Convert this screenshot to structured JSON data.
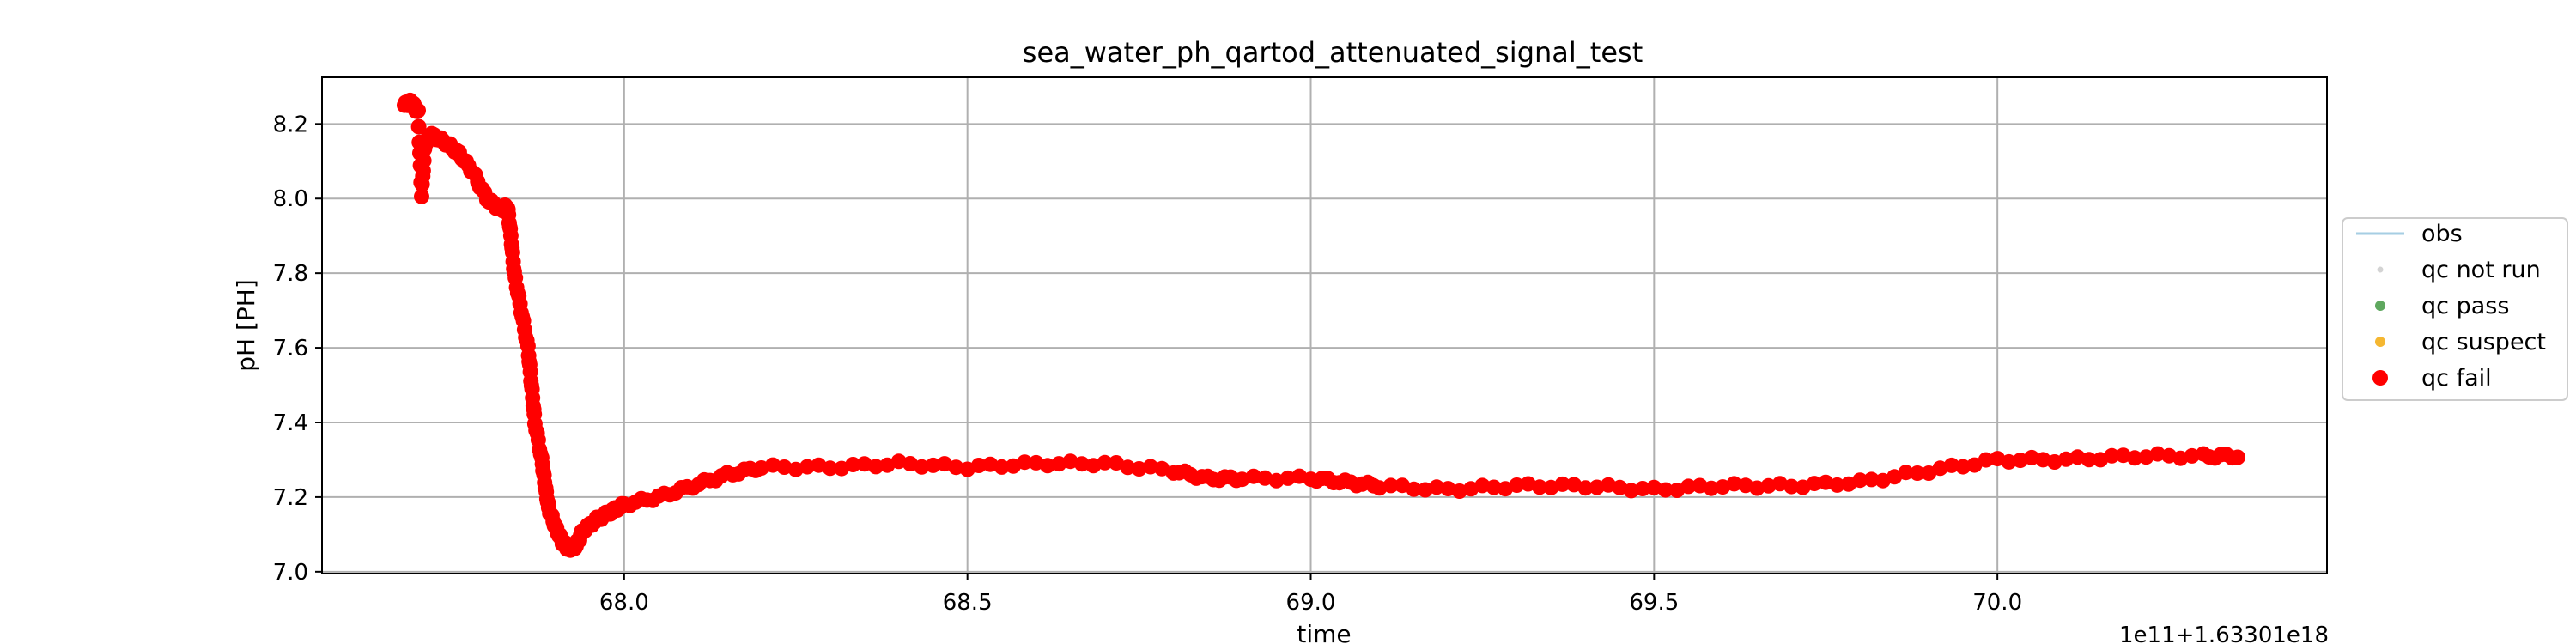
{
  "chart_data": {
    "type": "scatter",
    "title": "sea_water_ph_qartod_attenuated_signal_test",
    "xlabel": "time",
    "ylabel": "pH [PH]",
    "x_offset_label": "1e11+1.63301e18",
    "xlim": [
      67.56,
      70.48
    ],
    "ylim": [
      6.995,
      8.325
    ],
    "x_ticks": [
      68.0,
      68.5,
      69.0,
      69.5,
      70.0
    ],
    "x_tick_labels": [
      "68.0",
      "68.5",
      "69.0",
      "69.5",
      "70.0"
    ],
    "y_ticks": [
      7.0,
      7.2,
      7.4,
      7.6,
      7.8,
      8.0,
      8.2
    ],
    "y_tick_labels": [
      "7.0",
      "7.2",
      "7.4",
      "7.6",
      "7.8",
      "8.0",
      "8.2"
    ],
    "grid": true,
    "legend_position": "center-right",
    "legend": [
      {
        "label": "obs",
        "kind": "line",
        "color": "#a6cee3"
      },
      {
        "label": "qc not run",
        "kind": "point",
        "color": "#d3d3d3"
      },
      {
        "label": "qc pass",
        "kind": "point",
        "color": "#5fa85f"
      },
      {
        "label": "qc suspect",
        "kind": "point",
        "color": "#f5b731"
      },
      {
        "label": "qc fail",
        "kind": "point",
        "color": "#ff0000"
      }
    ],
    "series": [
      {
        "name": "obs",
        "color": "#a6cee3",
        "points": [
          [
            67.68,
            8.25
          ],
          [
            67.69,
            8.26
          ],
          [
            67.7,
            8.23
          ],
          [
            67.705,
            8.01
          ],
          [
            67.71,
            8.15
          ],
          [
            67.72,
            8.17
          ],
          [
            67.74,
            8.15
          ],
          [
            67.76,
            8.12
          ],
          [
            67.78,
            8.07
          ],
          [
            67.8,
            8.0
          ],
          [
            67.82,
            7.97
          ],
          [
            67.83,
            7.98
          ],
          [
            67.835,
            7.9
          ],
          [
            67.84,
            7.8
          ],
          [
            67.85,
            7.7
          ],
          [
            67.86,
            7.6
          ],
          [
            67.865,
            7.5
          ],
          [
            67.87,
            7.4
          ],
          [
            67.88,
            7.3
          ],
          [
            67.885,
            7.23
          ],
          [
            67.89,
            7.17
          ],
          [
            67.9,
            7.12
          ],
          [
            67.91,
            7.08
          ],
          [
            67.92,
            7.06
          ],
          [
            67.93,
            7.07
          ],
          [
            67.94,
            7.11
          ],
          [
            67.96,
            7.14
          ],
          [
            67.98,
            7.16
          ],
          [
            68.0,
            7.18
          ],
          [
            68.05,
            7.2
          ],
          [
            68.1,
            7.23
          ],
          [
            68.15,
            7.26
          ],
          [
            68.2,
            7.28
          ],
          [
            68.3,
            7.28
          ],
          [
            68.4,
            7.29
          ],
          [
            68.5,
            7.28
          ],
          [
            68.6,
            7.29
          ],
          [
            68.7,
            7.29
          ],
          [
            68.8,
            7.27
          ],
          [
            68.85,
            7.25
          ],
          [
            68.9,
            7.25
          ],
          [
            69.0,
            7.25
          ],
          [
            69.05,
            7.24
          ],
          [
            69.1,
            7.23
          ],
          [
            69.2,
            7.22
          ],
          [
            69.3,
            7.23
          ],
          [
            69.4,
            7.23
          ],
          [
            69.5,
            7.22
          ],
          [
            69.6,
            7.23
          ],
          [
            69.7,
            7.23
          ],
          [
            69.8,
            7.24
          ],
          [
            69.9,
            7.27
          ],
          [
            70.0,
            7.3
          ],
          [
            70.1,
            7.3
          ],
          [
            70.2,
            7.31
          ],
          [
            70.3,
            7.31
          ],
          [
            70.35,
            7.31
          ]
        ]
      },
      {
        "name": "qc fail",
        "color": "#ff0000",
        "points": [
          [
            67.68,
            8.25
          ],
          [
            67.69,
            8.26
          ],
          [
            67.7,
            8.23
          ],
          [
            67.705,
            8.01
          ],
          [
            67.71,
            8.15
          ],
          [
            67.72,
            8.17
          ],
          [
            67.74,
            8.15
          ],
          [
            67.76,
            8.12
          ],
          [
            67.78,
            8.07
          ],
          [
            67.8,
            8.0
          ],
          [
            67.82,
            7.97
          ],
          [
            67.83,
            7.98
          ],
          [
            67.835,
            7.9
          ],
          [
            67.84,
            7.8
          ],
          [
            67.85,
            7.7
          ],
          [
            67.86,
            7.6
          ],
          [
            67.865,
            7.5
          ],
          [
            67.87,
            7.4
          ],
          [
            67.88,
            7.3
          ],
          [
            67.885,
            7.23
          ],
          [
            67.89,
            7.17
          ],
          [
            67.9,
            7.12
          ],
          [
            67.91,
            7.08
          ],
          [
            67.92,
            7.06
          ],
          [
            67.93,
            7.07
          ],
          [
            67.94,
            7.11
          ],
          [
            67.96,
            7.14
          ],
          [
            67.98,
            7.16
          ],
          [
            68.0,
            7.18
          ],
          [
            68.05,
            7.2
          ],
          [
            68.1,
            7.23
          ],
          [
            68.15,
            7.26
          ],
          [
            68.2,
            7.28
          ],
          [
            68.3,
            7.28
          ],
          [
            68.4,
            7.29
          ],
          [
            68.5,
            7.28
          ],
          [
            68.6,
            7.29
          ],
          [
            68.7,
            7.29
          ],
          [
            68.8,
            7.27
          ],
          [
            68.85,
            7.25
          ],
          [
            68.9,
            7.25
          ],
          [
            69.0,
            7.25
          ],
          [
            69.05,
            7.24
          ],
          [
            69.1,
            7.23
          ],
          [
            69.2,
            7.22
          ],
          [
            69.3,
            7.23
          ],
          [
            69.4,
            7.23
          ],
          [
            69.5,
            7.22
          ],
          [
            69.6,
            7.23
          ],
          [
            69.7,
            7.23
          ],
          [
            69.8,
            7.24
          ],
          [
            69.9,
            7.27
          ],
          [
            70.0,
            7.3
          ],
          [
            70.1,
            7.3
          ],
          [
            70.2,
            7.31
          ],
          [
            70.3,
            7.31
          ],
          [
            70.35,
            7.31
          ]
        ]
      }
    ]
  }
}
